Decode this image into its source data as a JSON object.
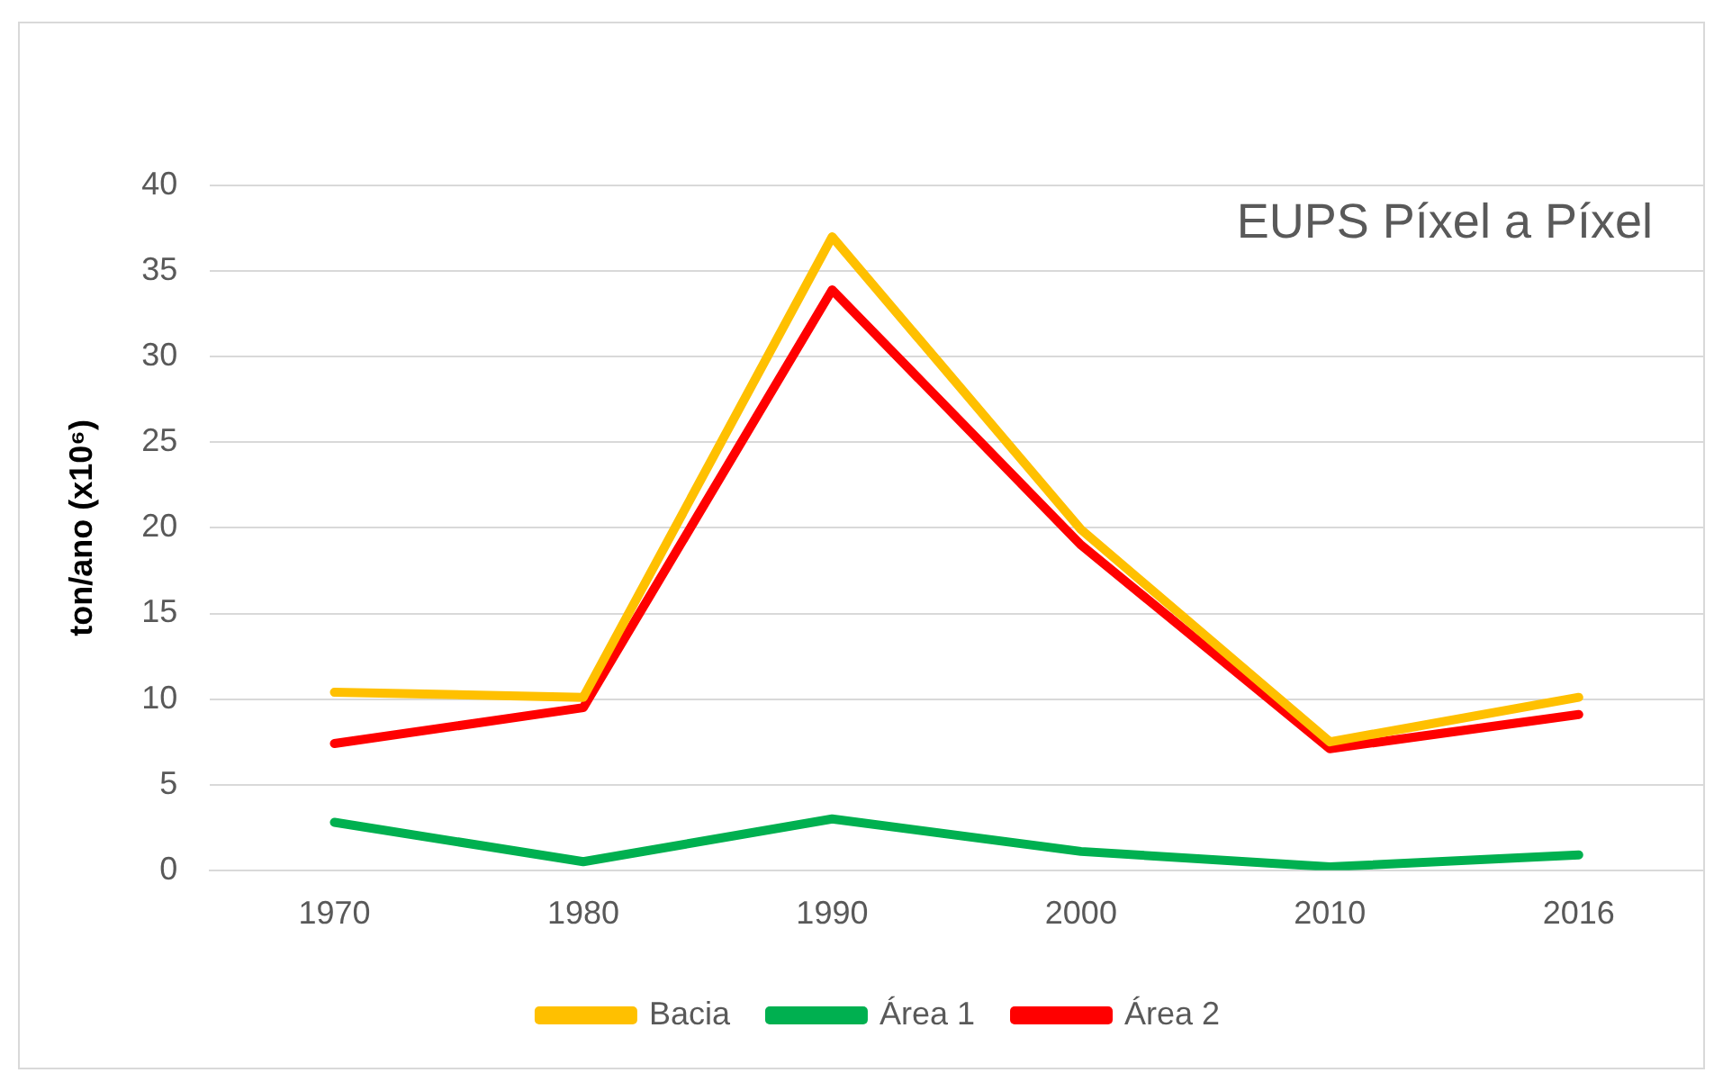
{
  "chart_data": {
    "type": "line",
    "ylabel": "ton/ano (x10⁶)",
    "annotations": [
      "EUPS Píxel a Píxel"
    ],
    "categories": [
      "1970",
      "1980",
      "1990",
      "2000",
      "2010",
      "2016"
    ],
    "ylim": [
      0,
      40
    ],
    "yticks": [
      0,
      5,
      10,
      15,
      20,
      25,
      30,
      35,
      40
    ],
    "grid": "y",
    "legend": "bottom",
    "marker": "none",
    "line_style": "solid",
    "series": [
      {
        "name": "Bacia",
        "color": "#ffc000",
        "values": [
          10.4,
          10.1,
          37,
          19.9,
          7.5,
          10.1
        ]
      },
      {
        "name": "Área 1",
        "color": "#00b050",
        "values": [
          2.8,
          0.5,
          3,
          1.1,
          0.2,
          0.9
        ]
      },
      {
        "name": "Área 2",
        "color": "#ff0000",
        "values": [
          7.4,
          9.5,
          33.9,
          19,
          7.1,
          9.1
        ]
      }
    ]
  }
}
